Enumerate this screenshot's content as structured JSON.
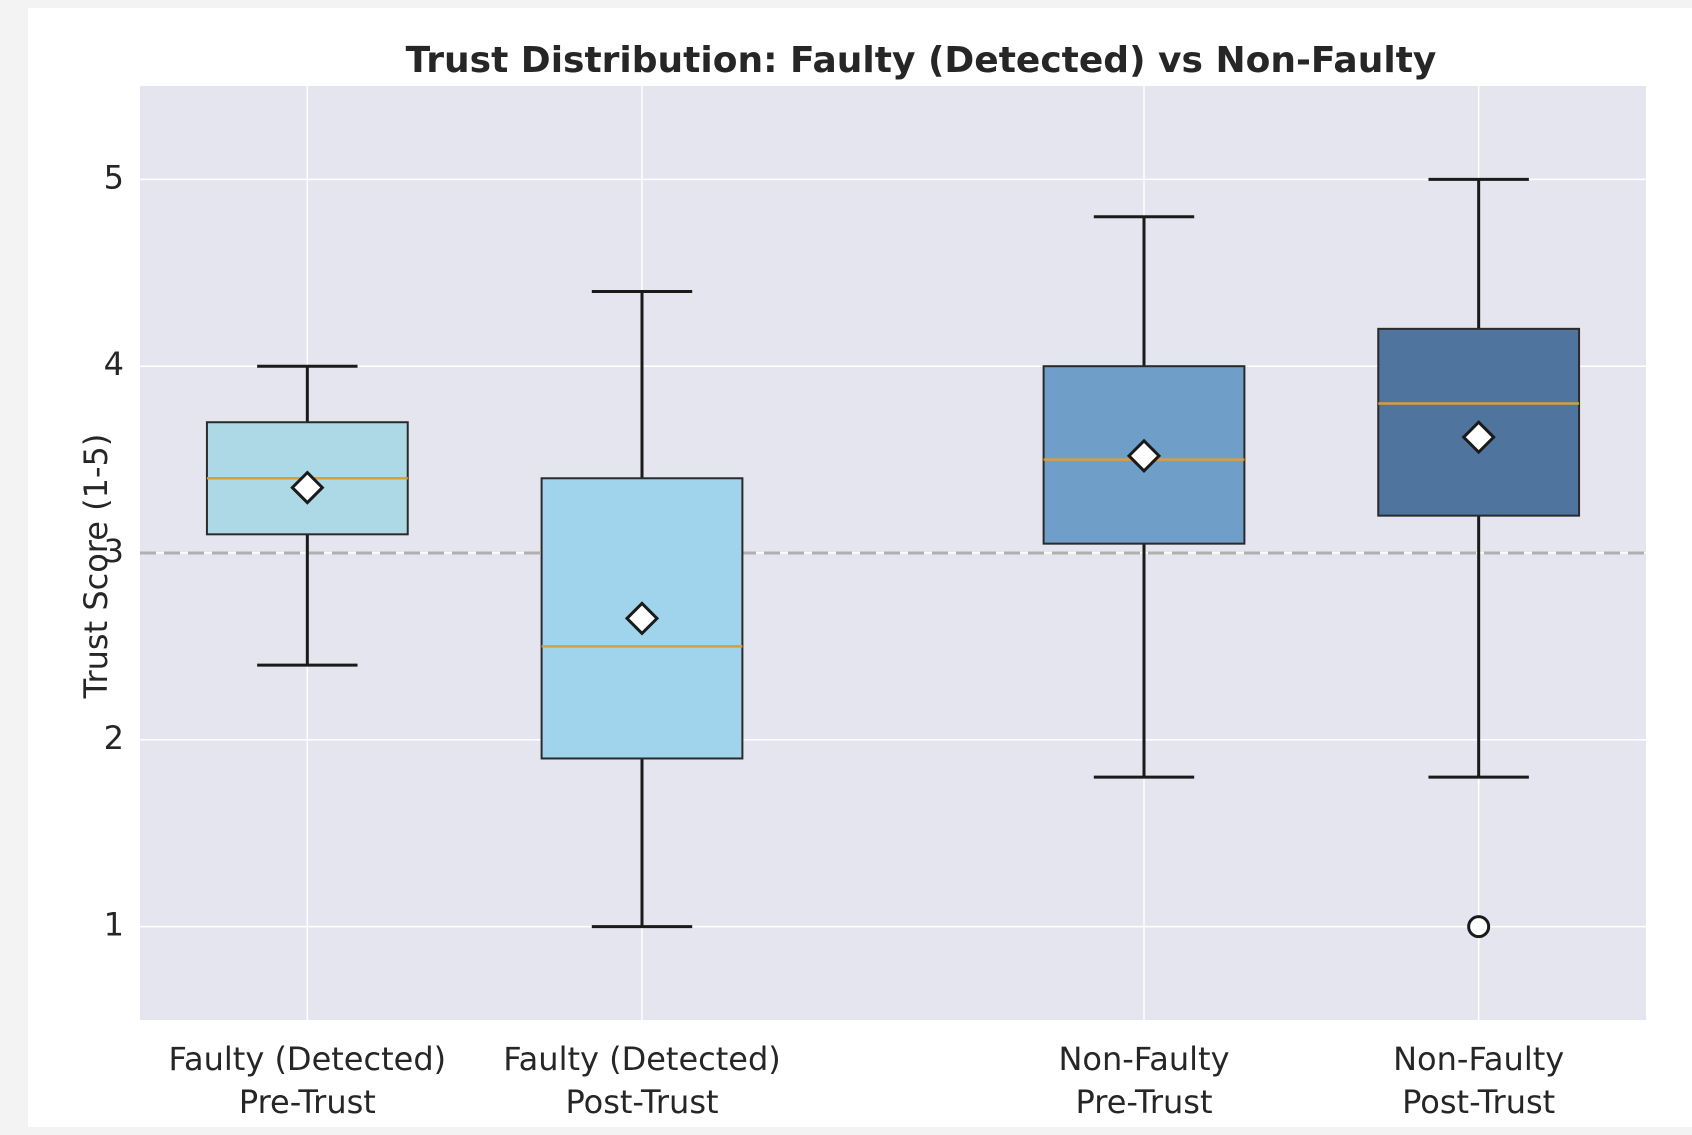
{
  "chart_data": {
    "type": "box",
    "title": "Trust Distribution: Faulty (Detected) vs Non-Faulty",
    "y_label": "Trust Score (1-5)",
    "categories": [
      "Faulty (Detected)\nPre-Trust",
      "Faulty (Detected)\nPost-Trust",
      "Non-Faulty\nPre-Trust",
      "Non-Faulty\nPost-Trust"
    ],
    "positions": [
      1,
      2,
      3.5,
      4.5
    ],
    "xlim": [
      0.5,
      5.0
    ],
    "ylim": [
      0.5,
      5.5
    ],
    "yticks": [
      1,
      2,
      3,
      4,
      5
    ],
    "grid": true,
    "reference_line": 3,
    "reference_color": "#b0b0b0",
    "median_color": "#d4a03c",
    "boxes": [
      {
        "whislo": 2.4,
        "q1": 3.1,
        "med": 3.4,
        "q3": 3.7,
        "whishi": 4.0,
        "mean": 3.35,
        "fliers": [],
        "color": "#add8e6"
      },
      {
        "whislo": 1.0,
        "q1": 1.9,
        "med": 2.5,
        "q3": 3.4,
        "whishi": 4.4,
        "mean": 2.65,
        "fliers": [],
        "color": "#a0d3ec"
      },
      {
        "whislo": 1.8,
        "q1": 3.05,
        "med": 3.5,
        "q3": 4.0,
        "whishi": 4.8,
        "mean": 3.52,
        "fliers": [],
        "color": "#6f9fc8"
      },
      {
        "whislo": 1.8,
        "q1": 3.2,
        "med": 3.8,
        "q3": 4.2,
        "whishi": 5.0,
        "mean": 3.62,
        "fliers": [
          1.0
        ],
        "color": "#4f749e"
      }
    ]
  }
}
